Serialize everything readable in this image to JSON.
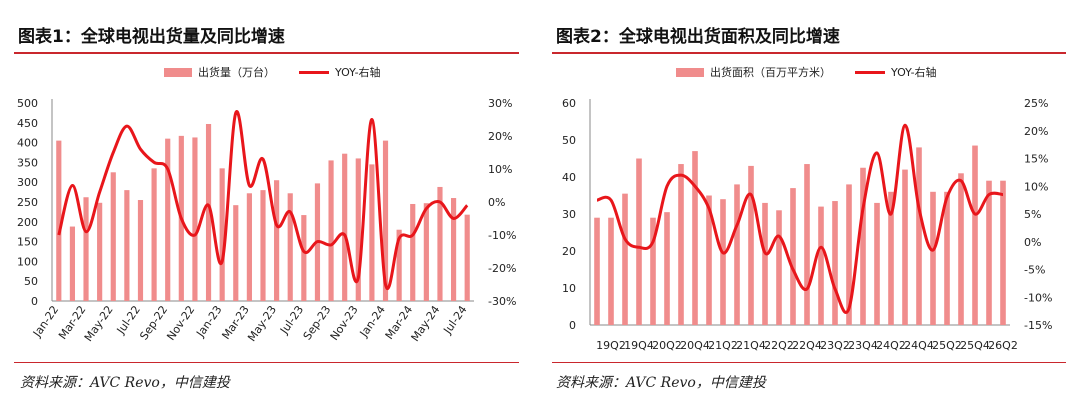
{
  "left": {
    "title": "图表1：全球电视出货量及同比增速",
    "source": "资料来源：AVC Revo，中信建投",
    "legend_bar": "出货量（万台）",
    "legend_line": "YOY-右轴"
  },
  "right": {
    "title": "图表2：全球电视出货面积及同比增速",
    "source": "资料来源：AVC Revo，中信建投",
    "legend_bar": "出货面积（百万平方米）",
    "legend_line": "YOY-右轴"
  },
  "colors": {
    "bar": "#f08c8c",
    "line": "#e8161b",
    "rule": "#c9272d"
  },
  "chart_data": [
    {
      "type": "bar+line",
      "title": "图表1：全球电视出货量及同比增速",
      "categories": [
        "Jan-22",
        "Feb-22",
        "Mar-22",
        "Apr-22",
        "May-22",
        "Jun-22",
        "Jul-22",
        "Aug-22",
        "Sep-22",
        "Oct-22",
        "Nov-22",
        "Dec-22",
        "Jan-23",
        "Feb-23",
        "Mar-23",
        "Apr-23",
        "May-23",
        "Jun-23",
        "Jul-23",
        "Aug-23",
        "Sep-23",
        "Oct-23",
        "Nov-23",
        "Dec-23",
        "Jan-24",
        "Feb-24",
        "Mar-24",
        "Apr-24",
        "May-24",
        "Jun-24",
        "Jul-24"
      ],
      "x_tick_labels": [
        "Jan-22",
        "Mar-22",
        "May-22",
        "Jul-22",
        "Sep-22",
        "Nov-22",
        "Jan-23",
        "Mar-23",
        "May-23",
        "Jul-23",
        "Sep-23",
        "Nov-23",
        "Jan-24",
        "Mar-24",
        "May-24",
        "Jul-24"
      ],
      "series": [
        {
          "name": "出货量（万台）",
          "axis": "left",
          "type": "bar",
          "values": [
            405,
            188,
            262,
            248,
            325,
            280,
            255,
            335,
            410,
            417,
            413,
            447,
            335,
            242,
            272,
            280,
            305,
            272,
            217,
            297,
            355,
            372,
            360,
            345,
            405,
            180,
            245,
            247,
            288,
            260,
            218
          ]
        },
        {
          "name": "YOY-右轴",
          "axis": "right",
          "type": "line",
          "values": [
            -10,
            5,
            -9,
            3,
            15,
            23,
            16,
            12,
            10,
            -5,
            -10,
            -1,
            -18,
            27,
            5,
            13,
            -7,
            -3,
            -15,
            -12,
            -13,
            -10,
            -23,
            25,
            -25,
            -11,
            -10,
            -2,
            0,
            -5,
            -1
          ]
        }
      ],
      "y_left": {
        "min": 0,
        "max": 500,
        "step": 50,
        "ticks": [
          "0",
          "50",
          "100",
          "150",
          "200",
          "250",
          "300",
          "350",
          "400",
          "450",
          "500"
        ]
      },
      "y_right": {
        "min": -30,
        "max": 30,
        "step": 10,
        "ticks": [
          "-30%",
          "-20%",
          "-10%",
          "0%",
          "10%",
          "20%",
          "30%"
        ]
      }
    },
    {
      "type": "bar+line",
      "title": "图表2：全球电视出货面积及同比增速",
      "categories": [
        "19Q1",
        "19Q2",
        "19Q3",
        "19Q4",
        "20Q1",
        "20Q2",
        "20Q3",
        "20Q4",
        "21Q1",
        "21Q2",
        "21Q3",
        "21Q4",
        "22Q1",
        "22Q2",
        "22Q3",
        "22Q4",
        "23Q1",
        "23Q2",
        "23Q3",
        "23Q4",
        "24Q1",
        "24Q2",
        "24Q3",
        "24Q4",
        "25Q1",
        "25Q2",
        "25Q3",
        "25Q4",
        "26Q1",
        "26Q2"
      ],
      "x_tick_labels": [
        "19Q2",
        "19Q4",
        "20Q2",
        "20Q4",
        "21Q2",
        "21Q4",
        "22Q2",
        "22Q4",
        "23Q2",
        "23Q4",
        "24Q2",
        "24Q4",
        "25Q2",
        "25Q4",
        "26Q2"
      ],
      "series": [
        {
          "name": "出货面积（百万平方米）",
          "axis": "left",
          "type": "bar",
          "values": [
            29,
            29,
            35.5,
            45,
            29,
            30.5,
            43.5,
            47,
            35,
            34,
            38,
            43,
            33,
            31,
            37,
            43.5,
            32,
            33.5,
            38,
            42.5,
            33,
            36,
            42,
            48,
            36,
            36,
            41,
            48.5,
            39,
            39
          ]
        },
        {
          "name": "YOY-右轴",
          "axis": "right",
          "type": "line",
          "values": [
            7.5,
            7.5,
            0.5,
            -1,
            0,
            10,
            12,
            10,
            6,
            -2,
            3,
            8.5,
            -2,
            1,
            -5,
            -8.5,
            -1,
            -8.5,
            -12,
            6,
            16,
            5,
            21,
            6,
            -1.5,
            8,
            11,
            5,
            8.5,
            8.5
          ]
        }
      ],
      "y_left": {
        "min": 0,
        "max": 60,
        "step": 10,
        "ticks": [
          "0",
          "10",
          "20",
          "30",
          "40",
          "50",
          "60"
        ]
      },
      "y_right": {
        "min": -15,
        "max": 25,
        "step": 5,
        "ticks": [
          "-15%",
          "-10%",
          "-5%",
          "0%",
          "5%",
          "10%",
          "15%",
          "20%",
          "25%"
        ]
      }
    }
  ]
}
